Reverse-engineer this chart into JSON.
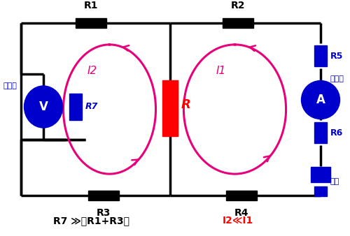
{
  "bg_color": "#ffffff",
  "line_color": "#000000",
  "resistor_color": "#000000",
  "loop_color": "#e8007a",
  "R_color": "#ff0000",
  "blue_color": "#0000cc",
  "title_eq1": "R7 ≫（R1+R3）",
  "title_eq2": "I2≪I1",
  "labels": {
    "R1": "R1",
    "R2": "R2",
    "R3": "R3",
    "R4": "R4",
    "R5": "R5",
    "R6": "R6",
    "R7": "R7",
    "I1": "I1",
    "I2": "I2",
    "R": "R",
    "V": "V",
    "A": "A",
    "denatsukei": "電圧計",
    "deryukei": "電流計",
    "denchi": "電池"
  }
}
